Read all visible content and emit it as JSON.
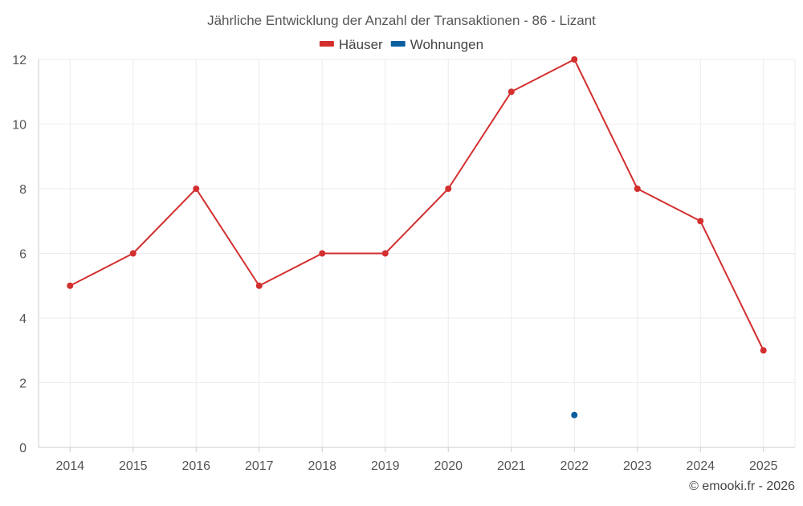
{
  "chart_data": {
    "type": "line",
    "title": "Jährliche Entwicklung der Anzahl der Transaktionen - 86 - Lizant",
    "categories": [
      "2014",
      "2015",
      "2016",
      "2017",
      "2018",
      "2019",
      "2020",
      "2021",
      "2022",
      "2023",
      "2024",
      "2025"
    ],
    "series": [
      {
        "name": "Häuser",
        "color": "#d32f2f",
        "values": [
          5,
          6,
          8,
          5,
          6,
          6,
          8,
          11,
          12,
          8,
          7,
          3
        ]
      },
      {
        "name": "Wohnungen",
        "color": "#0a5fa0",
        "values": [
          null,
          null,
          null,
          null,
          null,
          null,
          null,
          null,
          1,
          null,
          null,
          null
        ]
      }
    ],
    "ylim": [
      0,
      12
    ],
    "yticks": [
      0,
      2,
      4,
      6,
      8,
      10,
      12
    ],
    "xlabel": "",
    "ylabel": "",
    "grid": true,
    "legend_position": "top-center",
    "source": "© emooki.fr - 2026"
  }
}
